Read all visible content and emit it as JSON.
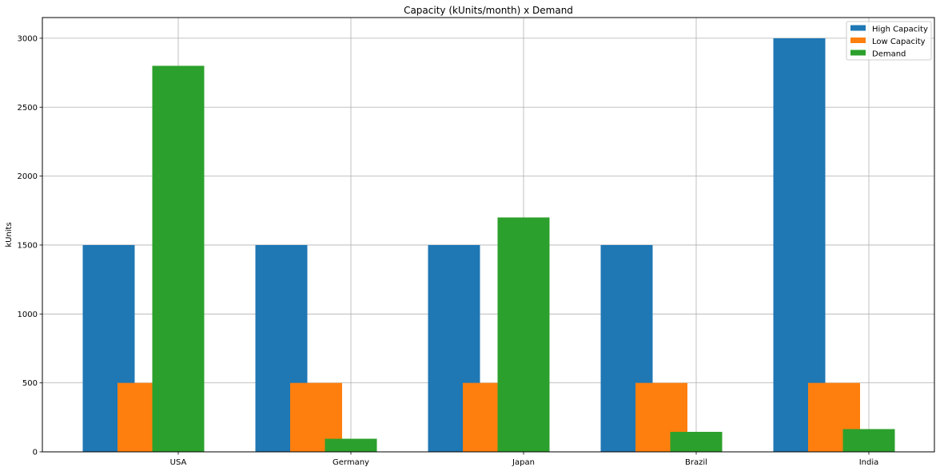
{
  "chart_data": {
    "type": "bar",
    "title": "Capacity (kUnits/month) x Demand",
    "xlabel": "",
    "ylabel": "kUnits",
    "categories": [
      "USA",
      "Germany",
      "Japan",
      "Brazil",
      "India"
    ],
    "series": [
      {
        "name": "High Capacity",
        "color": "#1f77b4",
        "values": [
          1500,
          1500,
          1500,
          1500,
          3000
        ]
      },
      {
        "name": "Low Capacity",
        "color": "#ff7f0e",
        "values": [
          500,
          500,
          500,
          500,
          500
        ]
      },
      {
        "name": "Demand",
        "color": "#2ca02c",
        "values": [
          2800,
          95,
          1700,
          145,
          165
        ]
      }
    ],
    "ylim": [
      0,
      3150
    ],
    "yticks": [
      0,
      500,
      1000,
      1500,
      2000,
      2500,
      3000
    ],
    "grid": true,
    "legend_position": "top-right"
  }
}
